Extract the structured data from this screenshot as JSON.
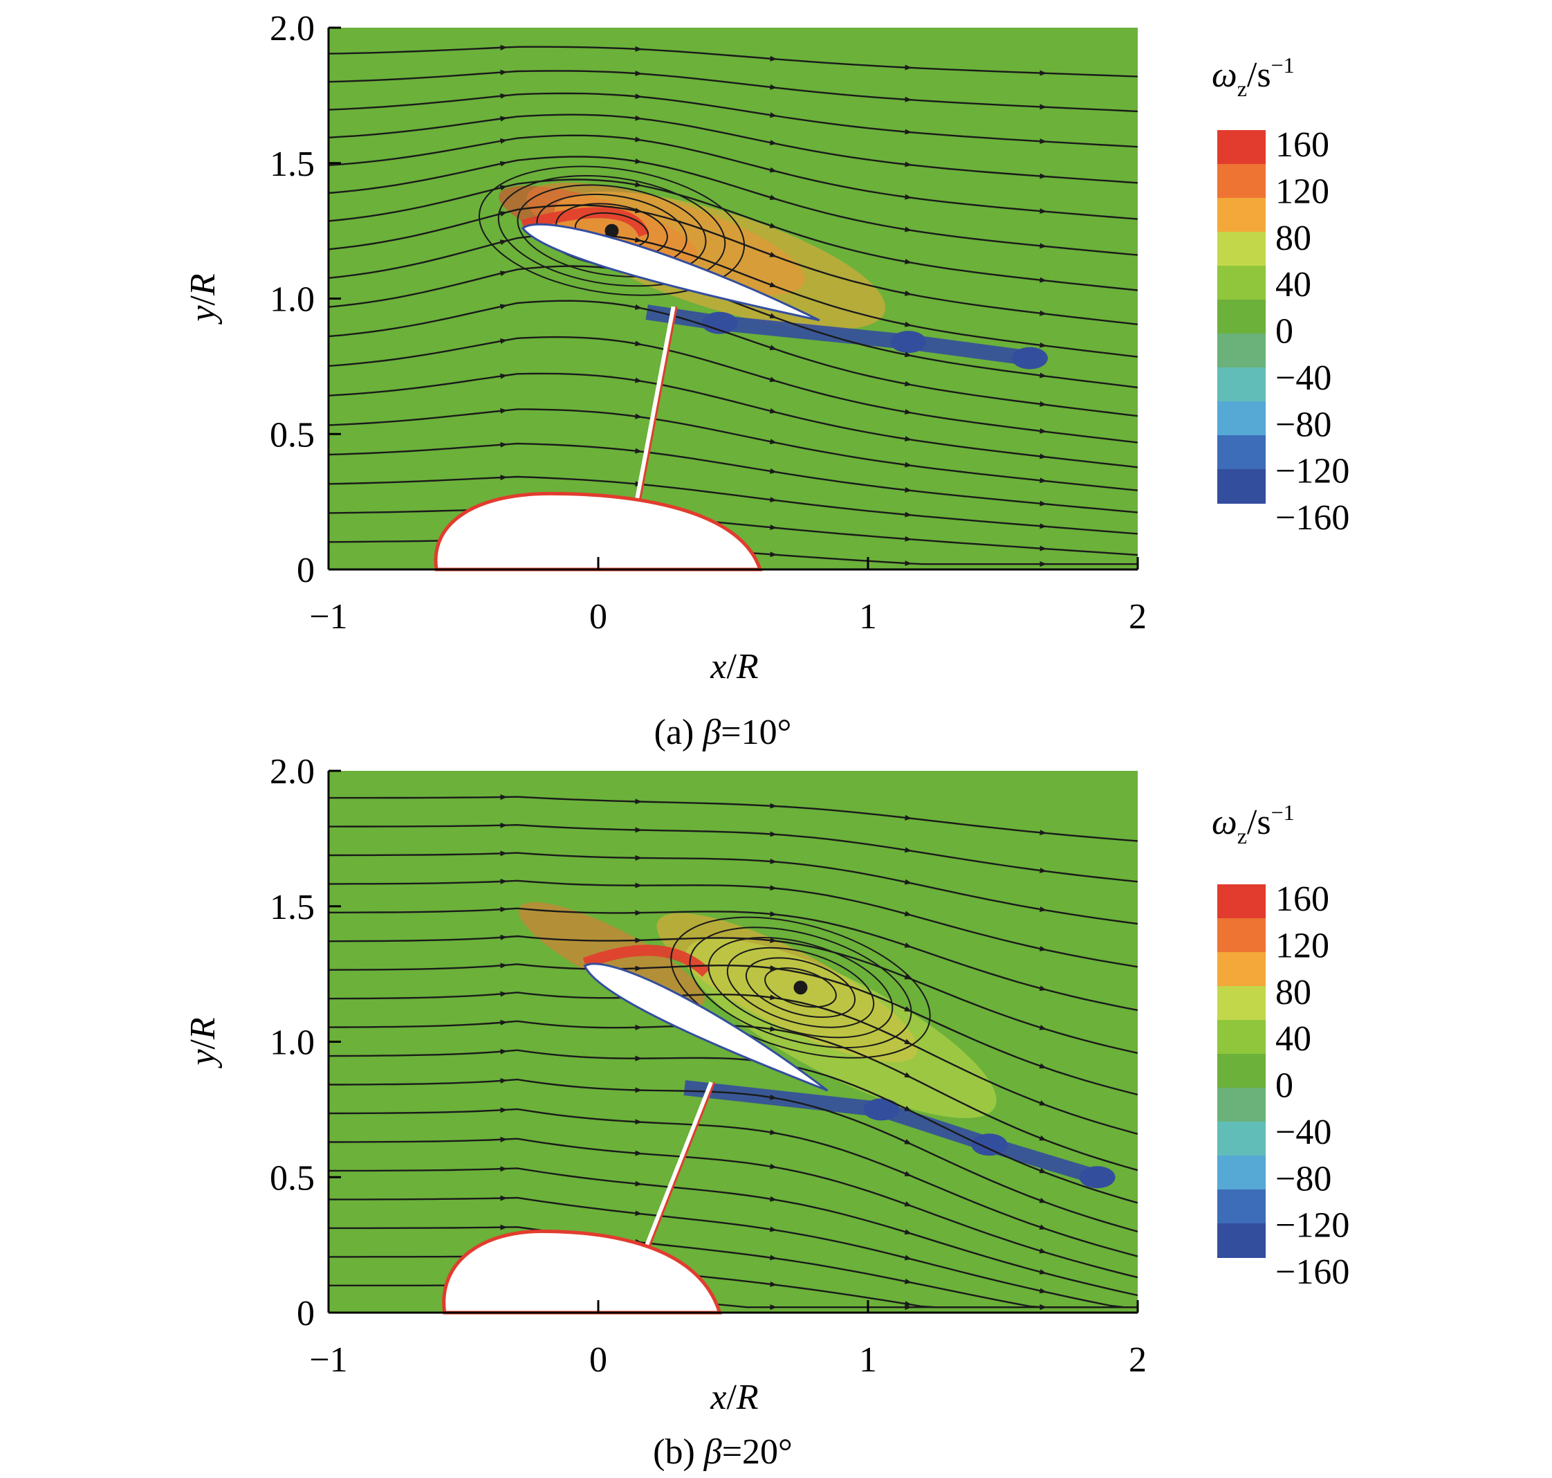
{
  "colors": {
    "field_zero": "#6BB13A",
    "background": "#FFFFFF",
    "streamline": "#1A1A1A"
  },
  "colorbar": {
    "title_symbol": "ω",
    "title_sub": "z",
    "title_unit": "/s",
    "title_exp": "−1",
    "tick_labels": [
      "160",
      "120",
      "80",
      "40",
      "0",
      "−40",
      "−80",
      "−120",
      "−160"
    ],
    "colors": [
      "#E23C2E",
      "#EE7434",
      "#F4A83A",
      "#C2D84A",
      "#90C63C",
      "#6BB13A",
      "#6AB27A",
      "#61BDB7",
      "#55A9D4",
      "#3D6DB8",
      "#344E9E"
    ]
  },
  "chart_data": [
    {
      "type": "heatmap",
      "field": "vorticity contour with streamlines",
      "caption_prefix": "(a)",
      "caption_symbol": "β",
      "caption_value": "=10°",
      "xlabel_var": "x",
      "xlabel_unit": "R",
      "ylabel_var": "y",
      "ylabel_unit": "R",
      "xlim": [
        -1,
        2
      ],
      "ylim": [
        0,
        2
      ],
      "xticks": [
        -1,
        0,
        1,
        2
      ],
      "xtick_labels": [
        "−1",
        "0",
        "1",
        "2"
      ],
      "yticks": [
        0,
        0.5,
        1.0,
        1.5,
        2.0
      ],
      "ytick_labels": [
        "0",
        "0.5",
        "1.0",
        "1.5",
        "2.0"
      ],
      "beta_deg": 10,
      "wing": {
        "leading_edge": [
          -0.28,
          1.26
        ],
        "trailing_edge": [
          0.82,
          0.92
        ]
      },
      "strut": {
        "top": [
          0.28,
          0.97
        ],
        "bottom": [
          0.13,
          0.18
        ]
      },
      "body": {
        "front": -0.6,
        "rear": 0.6,
        "top": 0.28
      },
      "vortex_center": [
        0.05,
        1.25
      ],
      "positive_regions": [
        {
          "label": "160",
          "x": 0.0,
          "y": 1.27
        },
        {
          "label": "120",
          "x": 0.25,
          "y": 1.22
        },
        {
          "label": "80",
          "x": 0.45,
          "y": 1.14
        }
      ],
      "negative_regions": [
        {
          "label": "−160",
          "x": 0.45,
          "y": 0.91
        },
        {
          "label": "−160",
          "x": 1.15,
          "y": 0.84
        },
        {
          "label": "−160",
          "x": 1.6,
          "y": 0.78
        }
      ],
      "streamline_count": 18
    },
    {
      "type": "heatmap",
      "field": "vorticity contour with streamlines",
      "caption_prefix": "(b)",
      "caption_symbol": "β",
      "caption_value": "=20°",
      "xlabel_var": "x",
      "xlabel_unit": "R",
      "ylabel_var": "y",
      "ylabel_unit": "R",
      "xlim": [
        -1,
        2
      ],
      "ylim": [
        0,
        2
      ],
      "xticks": [
        -1,
        0,
        1,
        2
      ],
      "xtick_labels": [
        "−1",
        "0",
        "1",
        "2"
      ],
      "yticks": [
        0,
        0.5,
        1.0,
        1.5,
        2.0
      ],
      "ytick_labels": [
        "0",
        "0.5",
        "1.0",
        "1.5",
        "2.0"
      ],
      "beta_deg": 20,
      "wing": {
        "leading_edge": [
          -0.05,
          1.28
        ],
        "trailing_edge": [
          0.85,
          0.82
        ]
      },
      "strut": {
        "top": [
          0.42,
          0.85
        ],
        "bottom": [
          0.15,
          0.17
        ]
      },
      "body": {
        "front": -0.57,
        "rear": 0.45,
        "top": 0.3
      },
      "vortex_center": [
        0.75,
        1.2
      ],
      "positive_regions": [
        {
          "label": "120",
          "x": 0.05,
          "y": 1.32
        },
        {
          "label": "80",
          "x": 0.7,
          "y": 1.2
        },
        {
          "label": "40",
          "x": 0.9,
          "y": 1.05
        }
      ],
      "negative_regions": [
        {
          "label": "−160",
          "x": 1.05,
          "y": 0.75
        },
        {
          "label": "−160",
          "x": 1.45,
          "y": 0.62
        },
        {
          "label": "−160",
          "x": 1.85,
          "y": 0.5
        }
      ],
      "streamline_count": 18
    }
  ]
}
